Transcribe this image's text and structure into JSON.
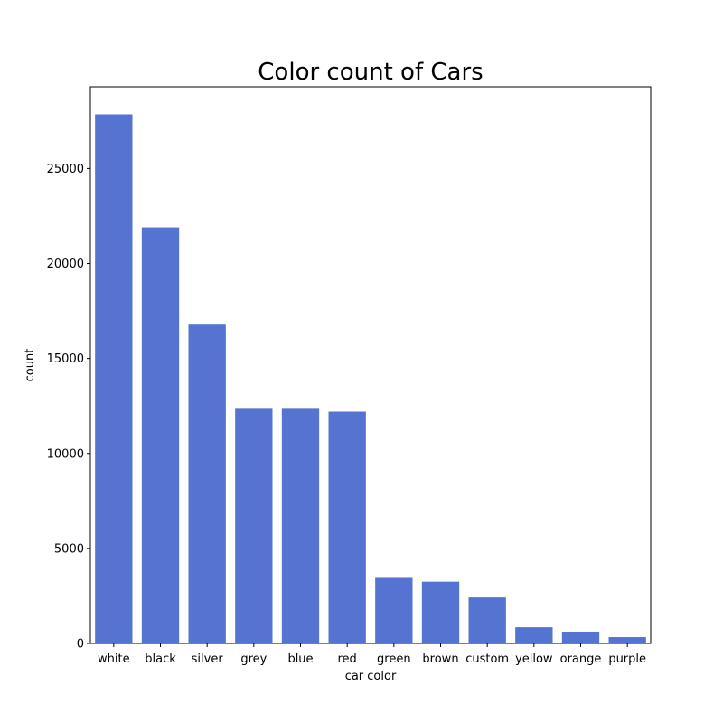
{
  "chart_data": {
    "type": "bar",
    "title": "Color count of Cars",
    "xlabel": "car color",
    "ylabel": "count",
    "categories": [
      "white",
      "black",
      "silver",
      "grey",
      "blue",
      "red",
      "green",
      "brown",
      "custom",
      "yellow",
      "orange",
      "purple"
    ],
    "values": [
      27850,
      21900,
      16780,
      12350,
      12350,
      12200,
      3450,
      3250,
      2420,
      850,
      620,
      330
    ],
    "ylim": [
      0,
      29300
    ],
    "yticks": [
      0,
      5000,
      10000,
      15000,
      20000,
      25000
    ],
    "ytick_labels": [
      "0",
      "5000",
      "10000",
      "15000",
      "20000",
      "25000"
    ],
    "grid": false,
    "bar_color": "#5573d1"
  }
}
